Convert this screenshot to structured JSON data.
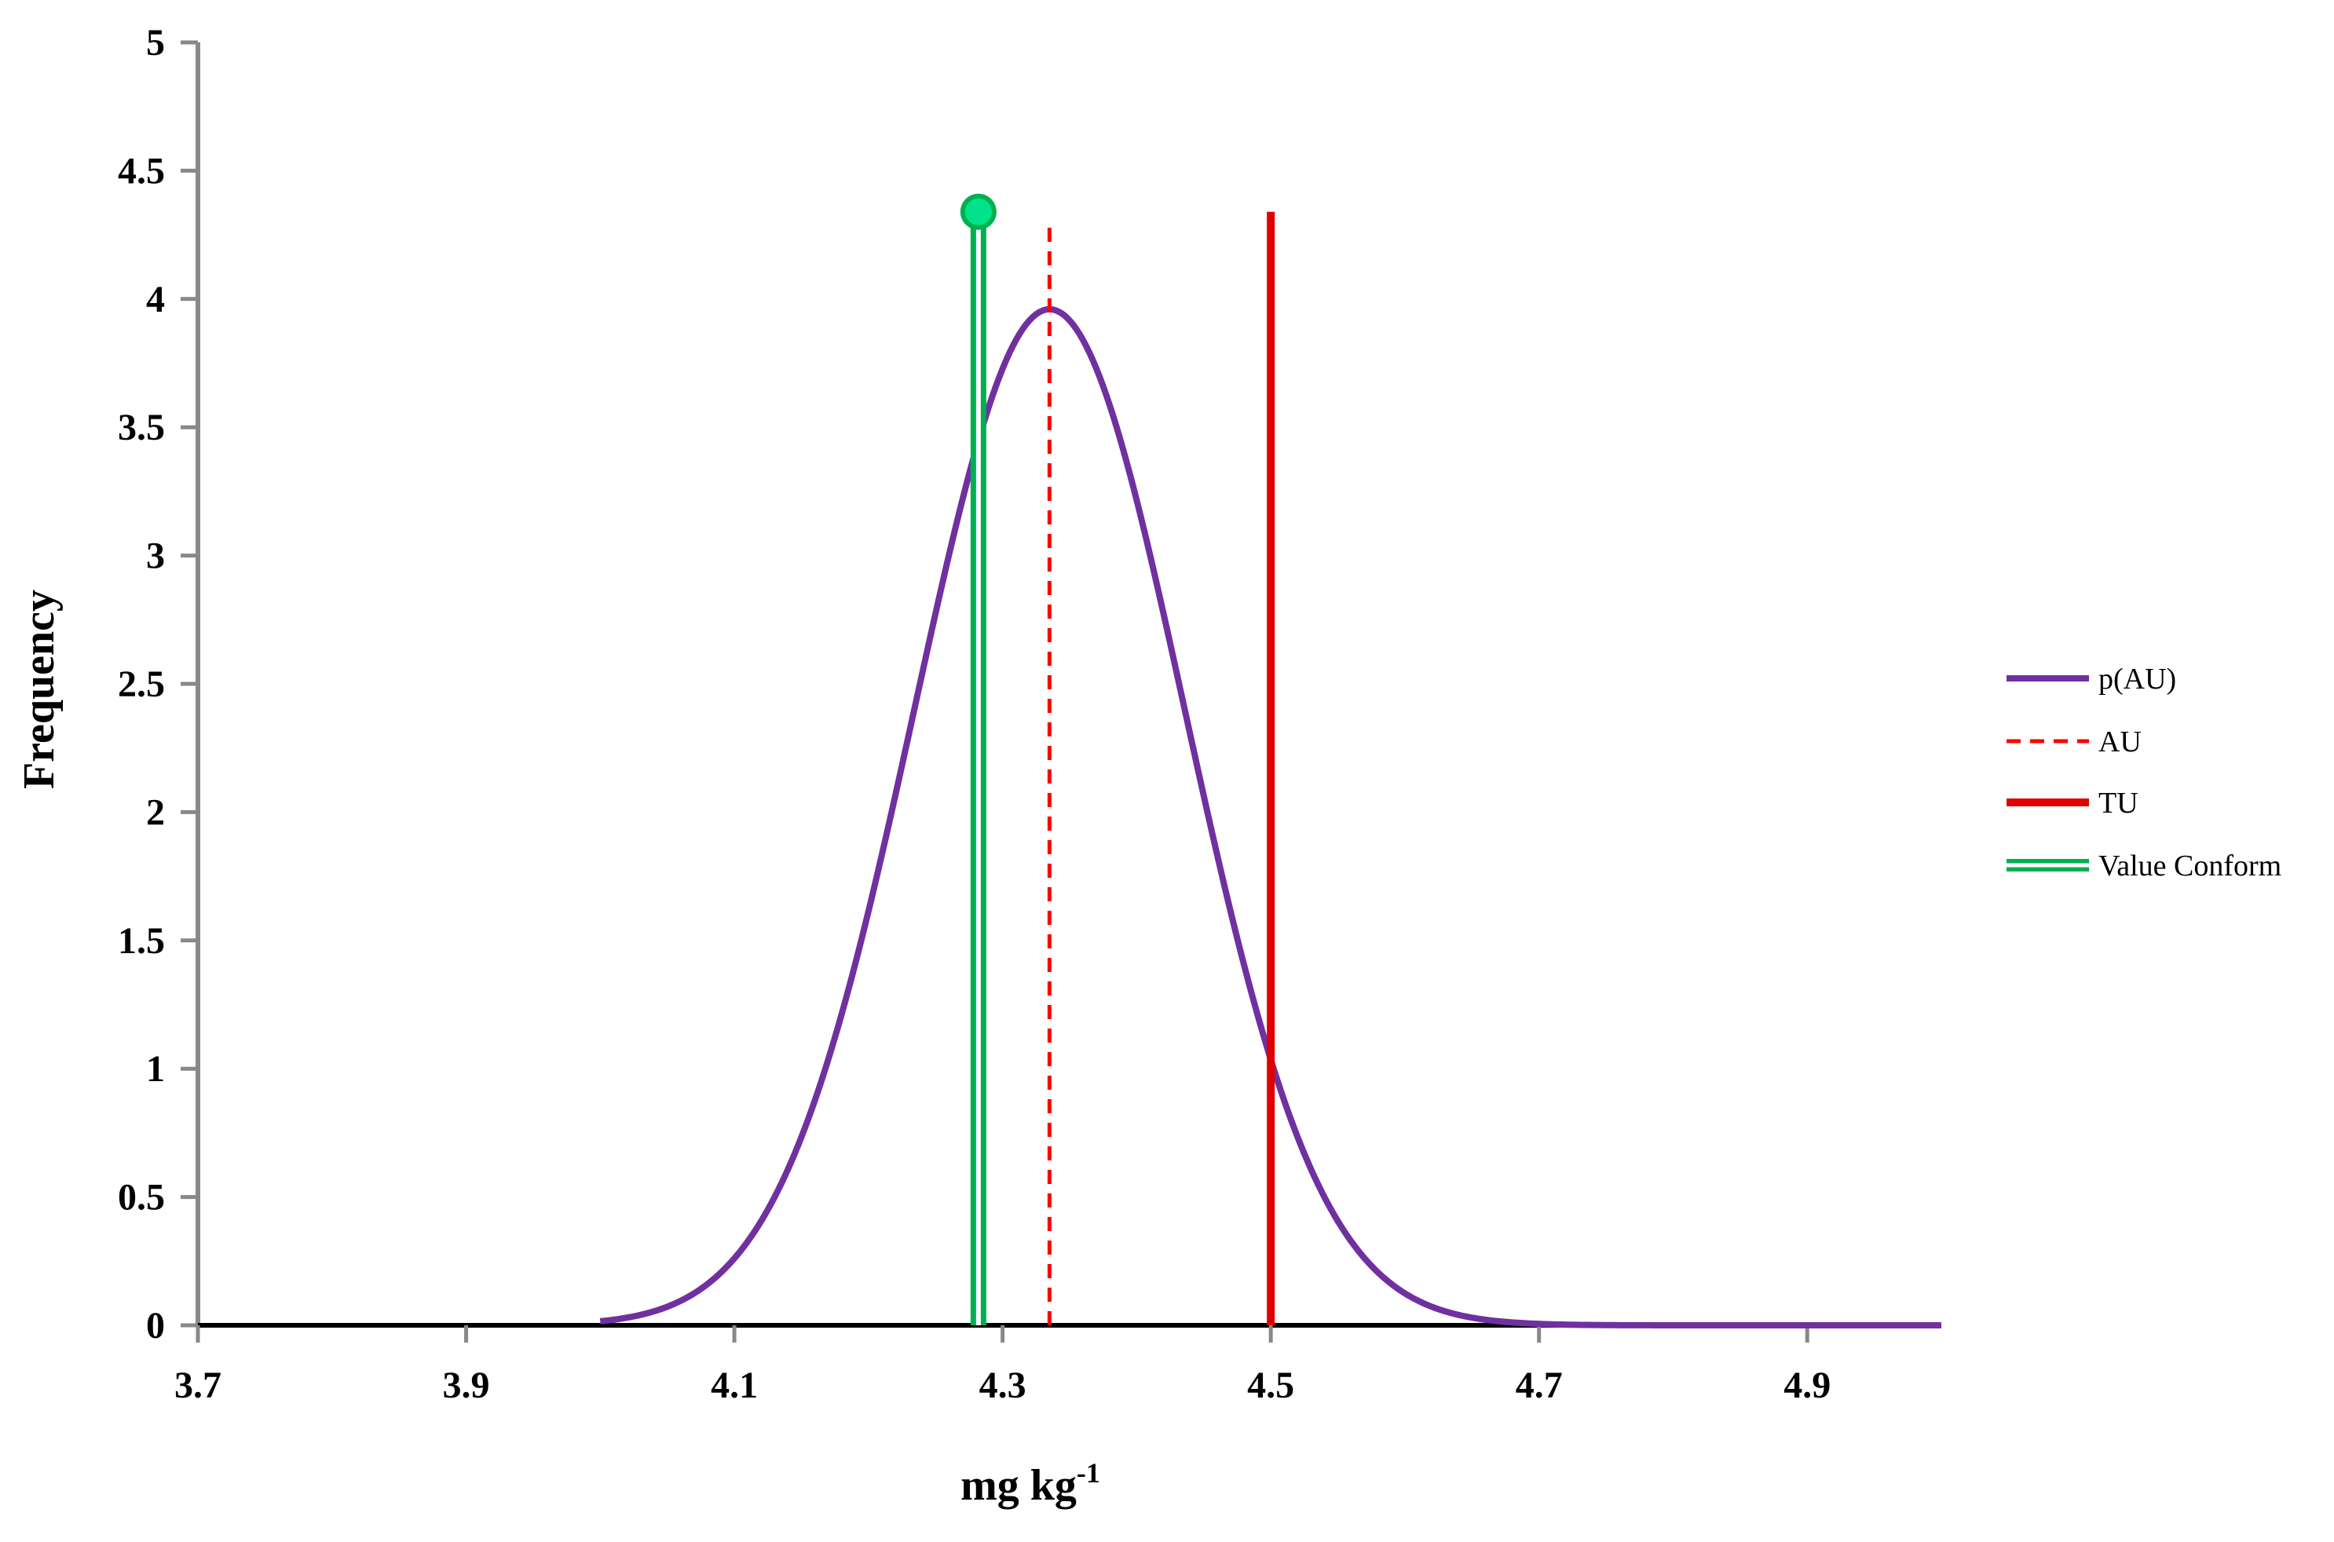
{
  "chart_data": {
    "type": "line",
    "xlabel": "mg kg",
    "xlabel_superscript": "-1",
    "ylabel": "Frequency",
    "xlim": [
      3.7,
      5.0
    ],
    "ylim": [
      0,
      5
    ],
    "x_ticks": [
      "3.7",
      "3.9",
      "4.1",
      "4.3",
      "4.5",
      "4.7",
      "4.9"
    ],
    "y_ticks": [
      "0",
      "0.5",
      "1",
      "1.5",
      "2",
      "2.5",
      "3",
      "3.5",
      "4",
      "4.5",
      "5"
    ],
    "grid": false,
    "legend_position": "right",
    "series": [
      {
        "name": "p(AU)",
        "kind": "normal-curve",
        "color": "#7030a0",
        "style": "solid",
        "mean": 4.335,
        "peak": 3.96,
        "x_range": [
          4.0,
          5.0
        ]
      },
      {
        "name": "AU",
        "kind": "vertical-line",
        "color": "#ff0000",
        "style": "dashed",
        "x": 4.335,
        "y_top": 4.3
      },
      {
        "name": "TU",
        "kind": "vertical-line",
        "color": "#e00000",
        "style": "solid-thick",
        "x": 4.5,
        "y_top": 4.34
      },
      {
        "name": "Value Conform",
        "kind": "vertical-line-marker",
        "color": "#00b050",
        "marker_fill": "#00e38a",
        "style": "double",
        "x": 4.282,
        "y_top": 4.34
      }
    ]
  }
}
